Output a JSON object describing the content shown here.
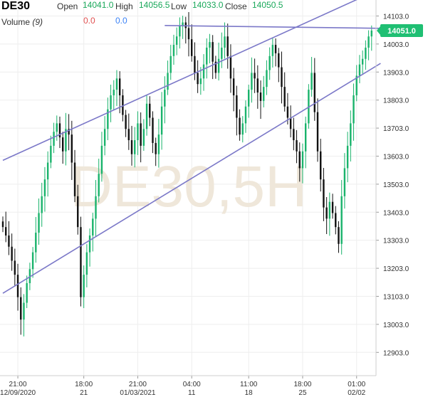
{
  "header": {
    "symbol": "DE30",
    "open_label": "Open",
    "open_value": "14041.0",
    "high_label": "High",
    "high_value": "14056.5",
    "low_label": "Low",
    "low_value": "14033.0",
    "close_label": "Close",
    "close_value": "14050.5",
    "volume_label": "Volume",
    "volume_period": "(9)",
    "volume_value_1": "0.0",
    "volume_value_2": "0.0"
  },
  "watermark": "DE30,5H",
  "colors": {
    "up": "#26a69a",
    "down": "#000000",
    "bull_candle": "#19b36b",
    "trendline": "#7b78c8",
    "price_badge": "#1fbf73",
    "grid": "#eeeeee",
    "watermark": "#efe7da"
  },
  "chart_data": {
    "type": "candlestick",
    "timeframe": "5H",
    "ylim": [
      12820,
      14160
    ],
    "y_ticks": [
      14103.0,
      14003.0,
      13903.0,
      13803.0,
      13703.0,
      13603.0,
      13503.0,
      13403.0,
      13303.0,
      13203.0,
      13103.0,
      13003.0,
      12903.0
    ],
    "y_tick_labels": [
      "14103.0",
      "14003.0",
      "13903.0",
      "13803.0",
      "13703.0",
      "13603.0",
      "13503.0",
      "13403.0",
      "13303.0",
      "13203.0",
      "13103.0",
      "13003.0",
      "12903.0"
    ],
    "x_ticks": [
      {
        "index": 5,
        "line1": "21:00",
        "line2": "12/09/2020"
      },
      {
        "index": 27,
        "line1": "18:00",
        "line2": "21"
      },
      {
        "index": 45,
        "line1": "21:00",
        "line2": "01/03/2021"
      },
      {
        "index": 63,
        "line1": "04:00",
        "line2": "11"
      },
      {
        "index": 82,
        "line1": "11:00",
        "line2": "18"
      },
      {
        "index": 100,
        "line1": "18:00",
        "line2": "25"
      },
      {
        "index": 118,
        "line1": "01:00",
        "line2": "02/02"
      }
    ],
    "last_price": 14051.0,
    "last_price_label": "14051.0",
    "closes": [
      13350,
      13320,
      13280,
      13230,
      13180,
      13100,
      13020,
      13080,
      13150,
      13200,
      13260,
      13330,
      13400,
      13460,
      13520,
      13580,
      13640,
      13690,
      13720,
      13670,
      13620,
      13700,
      13680,
      13580,
      13460,
      13350,
      13100,
      13180,
      13260,
      13320,
      13380,
      13460,
      13540,
      13640,
      13700,
      13770,
      13820,
      13840,
      13880,
      13820,
      13750,
      13700,
      13660,
      13610,
      13660,
      13720,
      13640,
      13700,
      13790,
      13740,
      13650,
      13610,
      13680,
      13780,
      13840,
      13900,
      13960,
      14000,
      14030,
      14070,
      14080,
      14060,
      14020,
      13960,
      13900,
      13860,
      13880,
      13930,
      13990,
      14010,
      13940,
      13900,
      13950,
      13990,
      14030,
      13960,
      13880,
      13820,
      13740,
      13680,
      13720,
      13780,
      13840,
      13900,
      13880,
      13830,
      13800,
      13850,
      13910,
      13960,
      14000,
      13970,
      13920,
      13850,
      13780,
      13740,
      13700,
      13660,
      13620,
      13560,
      13620,
      13720,
      13840,
      13900,
      13760,
      13620,
      13520,
      13420,
      13380,
      13440,
      13400,
      13350,
      13290,
      13460,
      13560,
      13640,
      13720,
      13820,
      13890,
      13930,
      13950,
      13990,
      14030,
      14051
    ],
    "trendlines": [
      {
        "from": {
          "index": 0,
          "price": 13588
        },
        "to": {
          "index": 126,
          "price": 14200
        }
      },
      {
        "from": {
          "index": 0,
          "price": 13114
        },
        "to": {
          "index": 126,
          "price": 13934
        }
      },
      {
        "from": {
          "index": 54,
          "price": 14069
        },
        "to": {
          "index": 126,
          "price": 14059
        }
      }
    ]
  }
}
